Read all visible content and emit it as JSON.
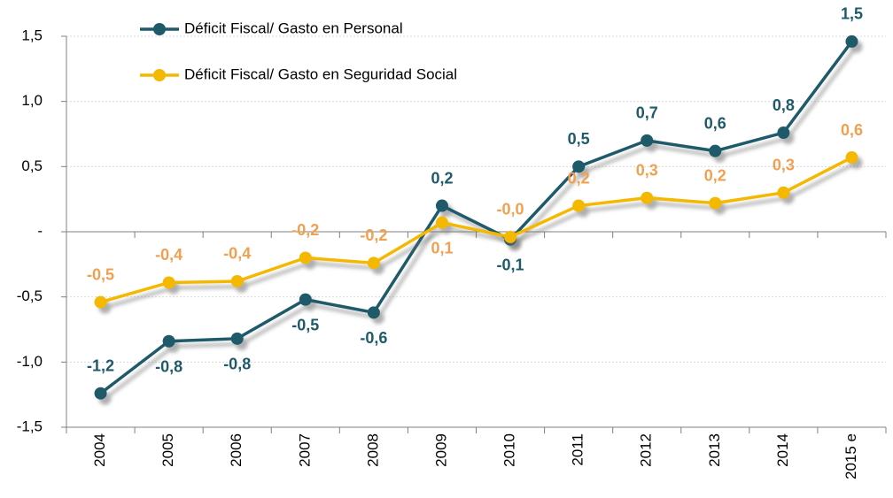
{
  "chart_data": {
    "type": "line",
    "categories": [
      "2004",
      "2005",
      "2006",
      "2007",
      "2008",
      "2009",
      "2010",
      "2011",
      "2012",
      "2013",
      "2014",
      "2015 e"
    ],
    "series": [
      {
        "name": "Déficit Fiscal/ Gasto en Personal",
        "color": "#1f5a6a",
        "label_color": "#1f5a6a",
        "values": [
          -1.24,
          -0.84,
          -0.82,
          -0.52,
          -0.62,
          0.2,
          -0.06,
          0.5,
          0.7,
          0.62,
          0.76,
          1.46
        ],
        "value_labels": [
          "-1,2",
          "-0,8",
          "-0,8",
          "-0,5",
          "-0,6",
          "0,2",
          "-0,1",
          "0,5",
          "0,7",
          "0,6",
          "0,8",
          "1,5"
        ]
      },
      {
        "name": "Déficit Fiscal/ Gasto en Seguridad Social",
        "color": "#f5b800",
        "label_color": "#f0a050",
        "values": [
          -0.54,
          -0.39,
          -0.38,
          -0.2,
          -0.24,
          0.07,
          -0.04,
          0.2,
          0.26,
          0.22,
          0.3,
          0.57
        ],
        "value_labels": [
          "-0,5",
          "-0,4",
          "-0,4",
          "-0,2",
          "-0,2",
          "0,1",
          "-0,0",
          "0,2",
          "0,3",
          "0,2",
          "0,3",
          "0,6"
        ]
      }
    ],
    "ylim": [
      -1.5,
      1.5
    ],
    "yticks": [
      {
        "value": 1.5,
        "label": "1,5"
      },
      {
        "value": 1.0,
        "label": "1,0"
      },
      {
        "value": 0.5,
        "label": "0,5"
      },
      {
        "value": 0,
        "label": "-"
      },
      {
        "value": -0.5,
        "label": "-0,5"
      },
      {
        "value": -1.0,
        "label": "-1,0"
      },
      {
        "value": -1.5,
        "label": "-1,5"
      }
    ],
    "grid": true,
    "legend": "upper left"
  }
}
